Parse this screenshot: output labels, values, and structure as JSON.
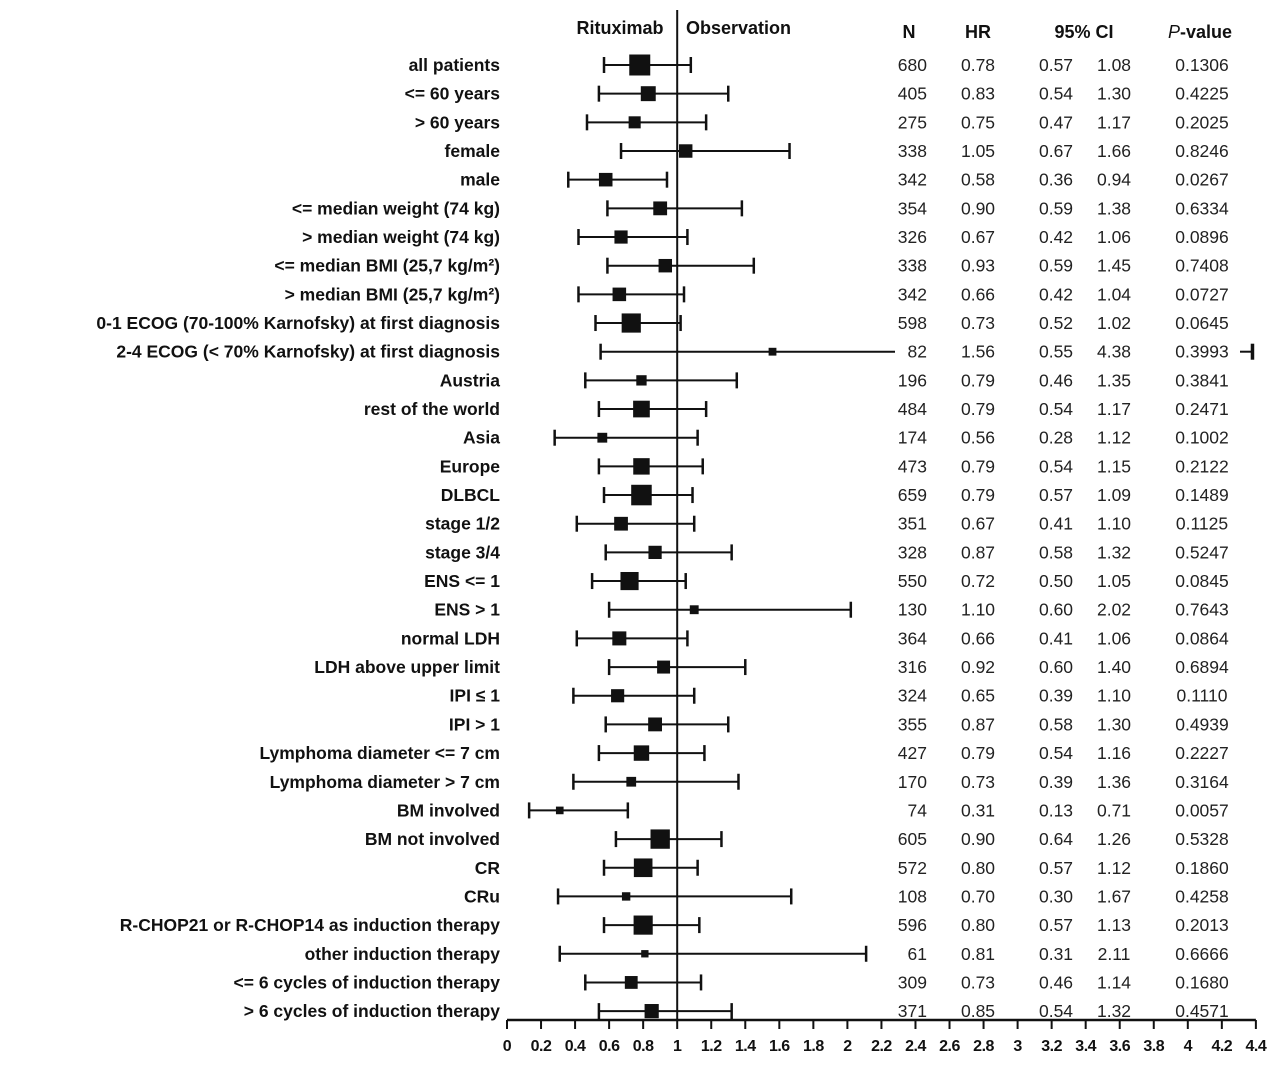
{
  "chart_data": {
    "type": "forest",
    "title": "",
    "header": {
      "left_favor": "Rituximab",
      "right_favor": "Observation"
    },
    "columns": {
      "n": "N",
      "hr": "HR",
      "ci": "95% CI",
      "p_italic": "P",
      "p_rest": "-value"
    },
    "xlim": [
      0,
      4.4
    ],
    "reference_line": 1,
    "x_ticks": [
      "0",
      "0.2",
      "0.4",
      "0.6",
      "0.8",
      "1",
      "1.2",
      "1.4",
      "1.6",
      "1.8",
      "2",
      "2.2",
      "2.4",
      "2.6",
      "2.8",
      "3",
      "3.2",
      "3.4",
      "3.6",
      "3.8",
      "4",
      "4.2",
      "4.4"
    ],
    "rows": [
      {
        "label": "all patients",
        "n": "680",
        "hr": "0.78",
        "lo": "0.57",
        "hi": "1.08",
        "p": "0.1306"
      },
      {
        "label": "<= 60 years",
        "n": "405",
        "hr": "0.83",
        "lo": "0.54",
        "hi": "1.30",
        "p": "0.4225"
      },
      {
        "label": "> 60 years",
        "n": "275",
        "hr": "0.75",
        "lo": "0.47",
        "hi": "1.17",
        "p": "0.2025"
      },
      {
        "label": "female",
        "n": "338",
        "hr": "1.05",
        "lo": "0.67",
        "hi": "1.66",
        "p": "0.8246"
      },
      {
        "label": "male",
        "n": "342",
        "hr": "0.58",
        "lo": "0.36",
        "hi": "0.94",
        "p": "0.0267"
      },
      {
        "label": "<= median weight (74 kg)",
        "n": "354",
        "hr": "0.90",
        "lo": "0.59",
        "hi": "1.38",
        "p": "0.6334"
      },
      {
        "label": "> median weight (74 kg)",
        "n": "326",
        "hr": "0.67",
        "lo": "0.42",
        "hi": "1.06",
        "p": "0.0896"
      },
      {
        "label": "<= median BMI (25,7 kg/m²)",
        "n": "338",
        "hr": "0.93",
        "lo": "0.59",
        "hi": "1.45",
        "p": "0.7408"
      },
      {
        "label": "> median BMI (25,7 kg/m²)",
        "n": "342",
        "hr": "0.66",
        "lo": "0.42",
        "hi": "1.04",
        "p": "0.0727"
      },
      {
        "label": "0-1 ECOG (70-100% Karnofsky) at first diagnosis",
        "n": "598",
        "hr": "0.73",
        "lo": "0.52",
        "hi": "1.02",
        "p": "0.0645"
      },
      {
        "label": "2-4 ECOG (< 70% Karnofsky) at first diagnosis",
        "n": "82",
        "hr": "1.56",
        "lo": "0.55",
        "hi": "4.38",
        "p": "0.3993"
      },
      {
        "label": "Austria",
        "n": "196",
        "hr": "0.79",
        "lo": "0.46",
        "hi": "1.35",
        "p": "0.3841"
      },
      {
        "label": "rest of the world",
        "n": "484",
        "hr": "0.79",
        "lo": "0.54",
        "hi": "1.17",
        "p": "0.2471"
      },
      {
        "label": "Asia",
        "n": "174",
        "hr": "0.56",
        "lo": "0.28",
        "hi": "1.12",
        "p": "0.1002"
      },
      {
        "label": "Europe",
        "n": "473",
        "hr": "0.79",
        "lo": "0.54",
        "hi": "1.15",
        "p": "0.2122"
      },
      {
        "label": "DLBCL",
        "n": "659",
        "hr": "0.79",
        "lo": "0.57",
        "hi": "1.09",
        "p": "0.1489"
      },
      {
        "label": "stage 1/2",
        "n": "351",
        "hr": "0.67",
        "lo": "0.41",
        "hi": "1.10",
        "p": "0.1125"
      },
      {
        "label": "stage 3/4",
        "n": "328",
        "hr": "0.87",
        "lo": "0.58",
        "hi": "1.32",
        "p": "0.5247"
      },
      {
        "label": "ENS <= 1",
        "n": "550",
        "hr": "0.72",
        "lo": "0.50",
        "hi": "1.05",
        "p": "0.0845"
      },
      {
        "label": "ENS > 1",
        "n": "130",
        "hr": "1.10",
        "lo": "0.60",
        "hi": "2.02",
        "p": "0.7643"
      },
      {
        "label": "normal LDH",
        "n": "364",
        "hr": "0.66",
        "lo": "0.41",
        "hi": "1.06",
        "p": "0.0864"
      },
      {
        "label": "LDH above upper limit",
        "n": "316",
        "hr": "0.92",
        "lo": "0.60",
        "hi": "1.40",
        "p": "0.6894"
      },
      {
        "label": "IPI ≤ 1",
        "n": "324",
        "hr": "0.65",
        "lo": "0.39",
        "hi": "1.10",
        "p": "0.1110"
      },
      {
        "label": "IPI > 1",
        "n": "355",
        "hr": "0.87",
        "lo": "0.58",
        "hi": "1.30",
        "p": "0.4939"
      },
      {
        "label": "Lymphoma diameter <= 7 cm",
        "n": "427",
        "hr": "0.79",
        "lo": "0.54",
        "hi": "1.16",
        "p": "0.2227"
      },
      {
        "label": "Lymphoma diameter > 7 cm",
        "n": "170",
        "hr": "0.73",
        "lo": "0.39",
        "hi": "1.36",
        "p": "0.3164"
      },
      {
        "label": "BM involved",
        "n": "74",
        "hr": "0.31",
        "lo": "0.13",
        "hi": "0.71",
        "p": "0.0057"
      },
      {
        "label": "BM not involved",
        "n": "605",
        "hr": "0.90",
        "lo": "0.64",
        "hi": "1.26",
        "p": "0.5328"
      },
      {
        "label": "CR",
        "n": "572",
        "hr": "0.80",
        "lo": "0.57",
        "hi": "1.12",
        "p": "0.1860"
      },
      {
        "label": "CRu",
        "n": "108",
        "hr": "0.70",
        "lo": "0.30",
        "hi": "1.67",
        "p": "0.4258"
      },
      {
        "label": "R-CHOP21 or R-CHOP14 as induction therapy",
        "n": "596",
        "hr": "0.80",
        "lo": "0.57",
        "hi": "1.13",
        "p": "0.2013"
      },
      {
        "label": "other induction therapy",
        "n": "61",
        "hr": "0.81",
        "lo": "0.31",
        "hi": "2.11",
        "p": "0.6666"
      },
      {
        "label": "<= 6 cycles of induction therapy",
        "n": "309",
        "hr": "0.73",
        "lo": "0.46",
        "hi": "1.14",
        "p": "0.1680"
      },
      {
        "label": "> 6 cycles of induction therapy",
        "n": "371",
        "hr": "0.85",
        "lo": "0.54",
        "hi": "1.32",
        "p": "0.4571"
      }
    ]
  }
}
